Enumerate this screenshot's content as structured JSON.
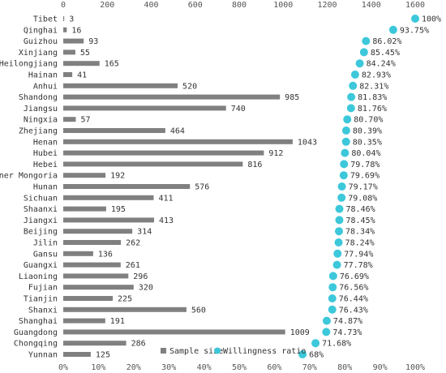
{
  "chart_data": {
    "type": "bar",
    "categories": [
      "Tibet",
      "Qinghai",
      "Guizhou",
      "Xinjiang",
      "Heilongjiang",
      "Hainan",
      "Anhui",
      "Shandong",
      "Jiangsu",
      "Ningxia",
      "Zhejiang",
      "Henan",
      "Hubei",
      "Hebei",
      "Inner Mongoria",
      "Hunan",
      "Sichuan",
      "Shaanxi",
      "Jiangxi",
      "Beijing",
      "Jilin",
      "Gansu",
      "Guangxi",
      "Liaoning",
      "Fujian",
      "Tianjin",
      "Shanxi",
      "Shanghai",
      "Guangdong",
      "Chongqing",
      "Yunnan"
    ],
    "series": [
      {
        "name": "Sample size",
        "type": "bar",
        "axis": "top",
        "color": "#808080",
        "values": [
          3,
          16,
          93,
          55,
          165,
          41,
          520,
          985,
          740,
          57,
          464,
          1043,
          912,
          816,
          192,
          576,
          411,
          195,
          413,
          314,
          262,
          136,
          261,
          296,
          320,
          225,
          560,
          191,
          1009,
          286,
          125
        ],
        "labels": [
          "3",
          "16",
          "93",
          "55",
          "165",
          "41",
          "520",
          "985",
          "740",
          "57",
          "464",
          "1043",
          "912",
          "816",
          "192",
          "576",
          "411",
          "195",
          "413",
          "314",
          "262",
          "136",
          "261",
          "296",
          "320",
          "225",
          "560",
          "191",
          "1009",
          "286",
          "125"
        ]
      },
      {
        "name": "Willingness ratio",
        "type": "scatter",
        "axis": "bottom",
        "color": "#3cc8da",
        "values": [
          100,
          93.75,
          86.02,
          85.45,
          84.24,
          82.93,
          82.31,
          81.83,
          81.76,
          80.7,
          80.39,
          80.35,
          80.04,
          79.78,
          79.69,
          79.17,
          79.08,
          78.46,
          78.45,
          78.34,
          78.24,
          77.94,
          77.78,
          76.69,
          76.56,
          76.44,
          76.43,
          74.87,
          74.73,
          71.68,
          68
        ],
        "labels": [
          "100%",
          "93.75%",
          "86.02%",
          "85.45%",
          "84.24%",
          "82.93%",
          "82.31%",
          "81.83%",
          "81.76%",
          "80.70%",
          "80.39%",
          "80.35%",
          "80.04%",
          "79.78%",
          "79.69%",
          "79.17%",
          "79.08%",
          "78.46%",
          "78.45%",
          "78.34%",
          "78.24%",
          "77.94%",
          "77.78%",
          "76.69%",
          "76.56%",
          "76.44%",
          "76.43%",
          "74.87%",
          "74.73%",
          "71.68%",
          "68%"
        ]
      }
    ],
    "x_top": {
      "range": [
        0,
        1600
      ],
      "ticks": [
        0,
        200,
        400,
        600,
        800,
        1000,
        1200,
        1400,
        1600
      ],
      "tick_labels": [
        "0",
        "200",
        "400",
        "600",
        "800",
        "1000",
        "1200",
        "1400",
        "1600"
      ]
    },
    "x_bottom": {
      "range": [
        0,
        100
      ],
      "ticks": [
        0,
        10,
        20,
        30,
        40,
        50,
        60,
        70,
        80,
        90,
        100
      ],
      "tick_labels": [
        "0%",
        "10%",
        "20%",
        "30%",
        "40%",
        "50%",
        "60%",
        "70%",
        "80%",
        "90%",
        "100%"
      ]
    },
    "legend": {
      "position": "bottom-inside",
      "items": [
        "Sample size",
        "Willingness ratio"
      ]
    },
    "grid": false,
    "title": "",
    "xlabel": "",
    "ylabel": ""
  }
}
